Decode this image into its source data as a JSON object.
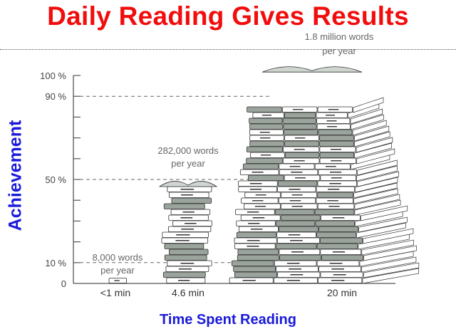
{
  "chart_data": {
    "type": "bar",
    "style": "pictograph stacks of books",
    "title": "Daily Reading Gives Results",
    "xlabel": "Time Spent Reading",
    "ylabel": "Achievement",
    "ylim": [
      0,
      100
    ],
    "yticks": [
      {
        "value": 100,
        "label": "100 %"
      },
      {
        "value": 90,
        "label": "90 %"
      },
      {
        "value": 50,
        "label": "50 %"
      },
      {
        "value": 10,
        "label": "10 %"
      },
      {
        "value": 0,
        "label": "0"
      }
    ],
    "minor_tick_step": 10,
    "reference_lines": [
      90,
      50,
      10
    ],
    "categories": [
      "<1 min",
      "4.6 min",
      "20 min"
    ],
    "values": [
      10,
      50,
      90
    ],
    "annotations": [
      {
        "line1": "8,000 words",
        "line2": "per year"
      },
      {
        "line1": "282,000 words",
        "line2": "per year"
      },
      {
        "line1": "1.8 million words",
        "line2": "per year"
      }
    ],
    "colors": {
      "title": "#f20d0d",
      "axis_labels": "#1a1adb",
      "book_gray": "#9aa39c",
      "book_white": "#ffffff"
    }
  }
}
